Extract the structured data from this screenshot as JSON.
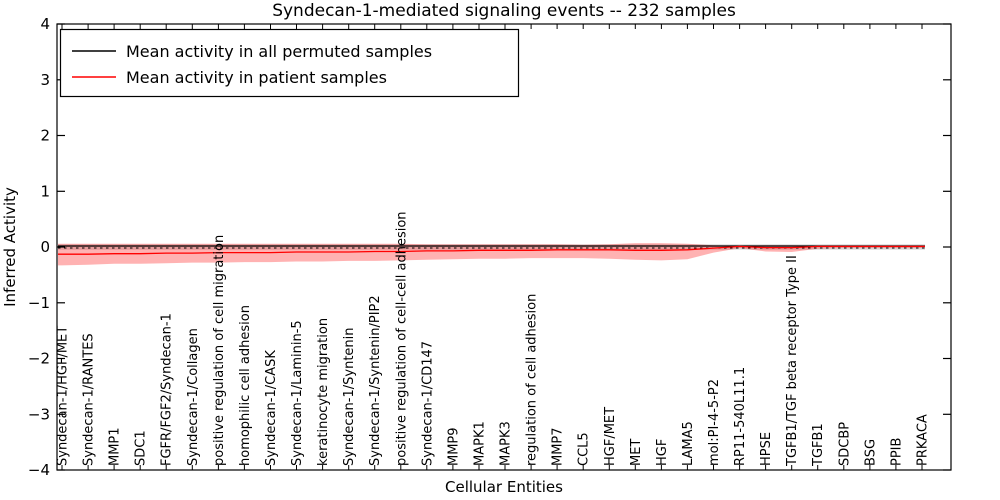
{
  "chart_data": {
    "type": "line",
    "title": "Syndecan-1-mediated signaling events -- 232 samples",
    "xlabel": "Cellular Entities",
    "ylabel": "Inferred Activity",
    "ylim": [
      -4,
      4
    ],
    "yticks": [
      -4,
      -3,
      -2,
      -1,
      0,
      1,
      2,
      3,
      4
    ],
    "grid": false,
    "legend_position": "upper left",
    "categories": [
      "Syndecan-1/HGF/MET",
      "Syndecan-1/RANTES",
      "MMP1",
      "SDC1",
      "FGFR/FGF2/Syndecan-1",
      "Syndecan-1/Collagen",
      "positive regulation of cell migration",
      "homophilic cell adhesion",
      "Syndecan-1/CASK",
      "Syndecan-1/Laminin-5",
      "keratinocyte migration",
      "Syndecan-1/Syntenin",
      "Syndecan-1/Syntenin/PIP2",
      "positive regulation of cell-cell adhesion",
      "Syndecan-1/CD147",
      "MMP9",
      "MAPK1",
      "MAPK3",
      "regulation of cell adhesion",
      "MMP7",
      "CCL5",
      "HGF/MET",
      "MET",
      "HGF",
      "LAMA5",
      "mol:PI-4-5-P2",
      "RP11-540L11.1",
      "HPSE",
      "TGFB1/TGF beta receptor Type II",
      "TGFB1",
      "SDCBP",
      "BSG",
      "PPIB",
      "PRKACA"
    ],
    "series": [
      {
        "name": "Mean activity in all permuted samples",
        "color": "#000000",
        "line_style": "solid",
        "values": [
          0,
          0,
          0,
          0,
          0,
          0,
          0,
          0,
          0,
          0,
          0,
          0,
          0,
          0,
          0,
          0,
          0,
          0,
          0,
          0,
          0,
          0,
          0,
          0,
          0,
          0,
          0,
          0,
          0,
          0,
          0,
          0,
          0,
          0
        ],
        "band": {
          "fill": "rgba(0,0,0,0.14)",
          "upper": [
            0.05,
            0.05,
            0.05,
            0.05,
            0.05,
            0.05,
            0.05,
            0.05,
            0.05,
            0.05,
            0.05,
            0.05,
            0.05,
            0.05,
            0.05,
            0.05,
            0.05,
            0.05,
            0.05,
            0.05,
            0.05,
            0.05,
            0.05,
            0.05,
            0.05,
            0.05,
            0.05,
            0.05,
            0.05,
            0.05,
            0.05,
            0.05,
            0.05,
            0.05
          ],
          "lower": [
            -0.05,
            -0.05,
            -0.05,
            -0.05,
            -0.05,
            -0.05,
            -0.05,
            -0.05,
            -0.05,
            -0.05,
            -0.05,
            -0.05,
            -0.05,
            -0.05,
            -0.05,
            -0.05,
            -0.05,
            -0.05,
            -0.05,
            -0.05,
            -0.05,
            -0.05,
            -0.05,
            -0.05,
            -0.05,
            -0.05,
            -0.05,
            -0.05,
            -0.05,
            -0.05,
            -0.05,
            -0.05,
            -0.05,
            -0.05
          ]
        }
      },
      {
        "name": "Mean activity in patient samples",
        "color": "#ff0000",
        "line_style": "solid",
        "values": [
          -0.13,
          -0.13,
          -0.12,
          -0.12,
          -0.11,
          -0.11,
          -0.1,
          -0.1,
          -0.1,
          -0.09,
          -0.09,
          -0.09,
          -0.08,
          -0.08,
          -0.07,
          -0.07,
          -0.06,
          -0.06,
          -0.06,
          -0.05,
          -0.05,
          -0.05,
          -0.06,
          -0.06,
          -0.05,
          -0.02,
          0.01,
          -0.01,
          -0.01,
          0.01,
          0.01,
          0.01,
          0.01,
          0.01
        ],
        "band": {
          "fill": "rgba(255,0,0,0.30)",
          "upper": [
            0.06,
            0.06,
            0.06,
            0.06,
            0.06,
            0.06,
            0.06,
            0.06,
            0.06,
            0.06,
            0.06,
            0.06,
            0.06,
            0.06,
            0.05,
            0.05,
            0.05,
            0.05,
            0.05,
            0.05,
            0.04,
            0.05,
            0.07,
            0.07,
            0.06,
            0.03,
            0.02,
            0.03,
            0.03,
            0.02,
            0.02,
            0.02,
            0.02,
            0.02
          ],
          "lower": [
            -0.33,
            -0.32,
            -0.3,
            -0.3,
            -0.29,
            -0.28,
            -0.28,
            -0.27,
            -0.27,
            -0.26,
            -0.26,
            -0.25,
            -0.25,
            -0.24,
            -0.23,
            -0.22,
            -0.21,
            -0.21,
            -0.2,
            -0.2,
            -0.2,
            -0.21,
            -0.23,
            -0.24,
            -0.22,
            -0.1,
            -0.02,
            -0.08,
            -0.09,
            -0.03,
            -0.02,
            -0.02,
            -0.02,
            -0.02
          ]
        }
      }
    ],
    "zero_line": {
      "value": 0,
      "style": "dashed",
      "color": "#000000"
    }
  }
}
